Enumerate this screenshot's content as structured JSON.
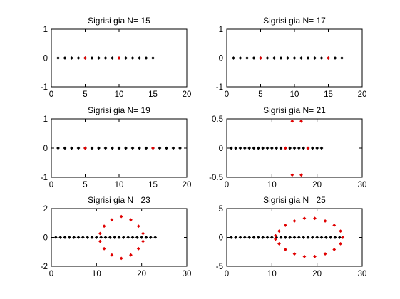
{
  "colors": {
    "black_marker": "#000000",
    "red_marker": "#e00000",
    "axes": "#000000",
    "background": "#ffffff"
  },
  "chart_data": [
    {
      "type": "scatter",
      "title": "Sigrisi gia N= 15",
      "xlim": [
        0,
        20
      ],
      "ylim": [
        -1,
        1
      ],
      "xticks": [
        0,
        5,
        10,
        15,
        20
      ],
      "yticks": [
        -1,
        0,
        1
      ],
      "xticklabels": [
        "0",
        "5",
        "10",
        "15",
        "20"
      ],
      "yticklabels": [
        "-1",
        "0",
        "1"
      ],
      "grid": false,
      "series": [
        {
          "color": "#000000",
          "marker": "diamond",
          "x": [
            1,
            2,
            3,
            4,
            5,
            6,
            7,
            8,
            9,
            10,
            11,
            12,
            13,
            14,
            15
          ],
          "y": [
            0,
            0,
            0,
            0,
            0,
            0,
            0,
            0,
            0,
            0,
            0,
            0,
            0,
            0,
            0
          ]
        },
        {
          "color": "#e00000",
          "marker": "diamond",
          "x": [
            5,
            10
          ],
          "y": [
            0,
            0
          ]
        }
      ]
    },
    {
      "type": "scatter",
      "title": "Sigrisi gia N= 17",
      "xlim": [
        0,
        20
      ],
      "ylim": [
        -1,
        1
      ],
      "xticks": [
        0,
        5,
        10,
        15,
        20
      ],
      "yticks": [
        -1,
        0,
        1
      ],
      "xticklabels": [
        "0",
        "5",
        "10",
        "15",
        "20"
      ],
      "yticklabels": [
        "-1",
        "0",
        "1"
      ],
      "grid": false,
      "series": [
        {
          "color": "#000000",
          "marker": "diamond",
          "x": [
            1,
            2,
            3,
            4,
            5,
            6,
            7,
            8,
            9,
            10,
            11,
            12,
            13,
            14,
            15,
            16,
            17
          ],
          "y": [
            0,
            0,
            0,
            0,
            0,
            0,
            0,
            0,
            0,
            0,
            0,
            0,
            0,
            0,
            0,
            0,
            0
          ]
        },
        {
          "color": "#e00000",
          "marker": "diamond",
          "x": [
            5,
            15
          ],
          "y": [
            0,
            0
          ]
        }
      ]
    },
    {
      "type": "scatter",
      "title": "Sigrisi gia N= 19",
      "xlim": [
        0,
        20
      ],
      "ylim": [
        -1,
        1
      ],
      "xticks": [
        0,
        5,
        10,
        15,
        20
      ],
      "yticks": [
        -1,
        0,
        1
      ],
      "xticklabels": [
        "0",
        "5",
        "10",
        "15",
        "20"
      ],
      "yticklabels": [
        "-1",
        "0",
        "1"
      ],
      "grid": false,
      "series": [
        {
          "color": "#000000",
          "marker": "diamond",
          "x": [
            1,
            2,
            3,
            4,
            5,
            6,
            7,
            8,
            9,
            10,
            11,
            12,
            13,
            14,
            15,
            16,
            17,
            18,
            19
          ],
          "y": [
            0,
            0,
            0,
            0,
            0,
            0,
            0,
            0,
            0,
            0,
            0,
            0,
            0,
            0,
            0,
            0,
            0,
            0,
            0
          ]
        },
        {
          "color": "#e00000",
          "marker": "diamond",
          "x": [
            5,
            15
          ],
          "y": [
            0,
            0
          ]
        }
      ]
    },
    {
      "type": "scatter",
      "title": "Sigrisi gia N= 21",
      "xlim": [
        0,
        30
      ],
      "ylim": [
        -0.5,
        0.5
      ],
      "xticks": [
        0,
        10,
        20,
        30
      ],
      "yticks": [
        -0.5,
        0,
        0.5
      ],
      "xticklabels": [
        "0",
        "10",
        "20",
        "30"
      ],
      "yticklabels": [
        "-0.5",
        "0",
        "0.5"
      ],
      "grid": false,
      "series": [
        {
          "color": "#000000",
          "marker": "diamond",
          "x": [
            1,
            2,
            3,
            4,
            5,
            6,
            7,
            8,
            9,
            10,
            11,
            12,
            13,
            14,
            15,
            16,
            17,
            18,
            19,
            20,
            21
          ],
          "y": [
            0,
            0,
            0,
            0,
            0,
            0,
            0,
            0,
            0,
            0,
            0,
            0,
            0,
            0,
            0,
            0,
            0,
            0,
            0,
            0,
            0
          ]
        },
        {
          "color": "#e00000",
          "marker": "diamond",
          "x": [
            14.5,
            16.5,
            14.5,
            16.5,
            13,
            18
          ],
          "y": [
            0.46,
            0.46,
            -0.46,
            -0.46,
            0,
            0
          ]
        }
      ]
    },
    {
      "type": "scatter",
      "title": "Sigrisi gia N= 23",
      "xlim": [
        0,
        30
      ],
      "ylim": [
        -2,
        2
      ],
      "xticks": [
        0,
        10,
        20,
        30
      ],
      "yticks": [
        -2,
        0,
        2
      ],
      "xticklabels": [
        "0",
        "10",
        "20",
        "30"
      ],
      "yticklabels": [
        "-2",
        "0",
        "2"
      ],
      "grid": false,
      "series": [
        {
          "color": "#000000",
          "marker": "diamond",
          "x": [
            1,
            2,
            3,
            4,
            5,
            6,
            7,
            8,
            9,
            10,
            11,
            12,
            13,
            14,
            15,
            16,
            17,
            18,
            19,
            20,
            21,
            22,
            23
          ],
          "y": [
            0,
            0,
            0,
            0,
            0,
            0,
            0,
            0,
            0,
            0,
            0,
            0,
            0,
            0,
            0,
            0,
            0,
            0,
            0,
            0,
            0,
            0,
            0
          ]
        },
        {
          "color": "#e00000",
          "marker": "diamond",
          "x": [
            15.5,
            17.6,
            19.3,
            20.3,
            20.3,
            19.3,
            17.6,
            15.5,
            13.4,
            11.7,
            10.8,
            10.8,
            11.7,
            13.4
          ],
          "y": [
            1.45,
            1.22,
            0.78,
            0.27,
            -0.27,
            -0.78,
            -1.22,
            -1.45,
            -1.22,
            -0.78,
            -0.27,
            0.27,
            0.78,
            1.22
          ]
        }
      ]
    },
    {
      "type": "scatter",
      "title": "Sigrisi gia N= 25",
      "xlim": [
        0,
        30
      ],
      "ylim": [
        -5,
        5
      ],
      "xticks": [
        0,
        10,
        20,
        30
      ],
      "yticks": [
        -5,
        0,
        5
      ],
      "xticklabels": [
        "0",
        "10",
        "20",
        "30"
      ],
      "yticklabels": [
        "-5",
        "0",
        "5"
      ],
      "grid": false,
      "series": [
        {
          "color": "#000000",
          "marker": "diamond",
          "x": [
            1,
            2,
            3,
            4,
            5,
            6,
            7,
            8,
            9,
            10,
            11,
            12,
            13,
            14,
            15,
            16,
            17,
            18,
            19,
            20,
            21,
            22,
            23,
            24,
            25
          ],
          "y": [
            0,
            0,
            0,
            0,
            0,
            0,
            0,
            0,
            0,
            0,
            0,
            0,
            0,
            0,
            0,
            0,
            0,
            0,
            0,
            0,
            0,
            0,
            0,
            0,
            0
          ]
        },
        {
          "color": "#e00000",
          "marker": "diamond",
          "x": [
            25.7,
            25.2,
            23.8,
            21.8,
            19.5,
            17.2,
            15.0,
            13.0,
            11.6,
            10.8,
            10.8,
            11.6,
            13.0,
            15.0,
            17.2,
            19.5,
            21.8,
            23.8,
            25.2
          ],
          "y": [
            0,
            1.1,
            2.1,
            2.85,
            3.3,
            3.3,
            2.85,
            2.1,
            1.1,
            0.3,
            -0.3,
            -1.1,
            -2.1,
            -2.85,
            -3.3,
            -3.3,
            -2.85,
            -2.1,
            -1.1
          ]
        }
      ]
    }
  ]
}
